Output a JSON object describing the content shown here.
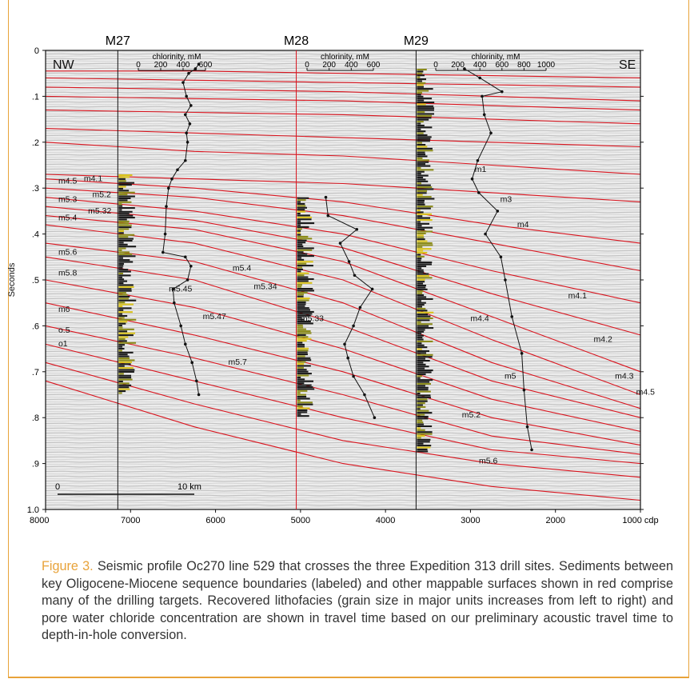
{
  "figure": {
    "caption_lead": "Figure 3.",
    "caption_text": " Seismic profile Oc270 line 529 that crosses the three Expedition 313 drill sites. Sediments between key Oligocene-Miocene sequence boundaries (labeled) and other mappable surfaces shown in red comprise many of the drilling targets. Recovered lithofacies (grain size in major units increases from left to right) and pore water chloride concentration are shown in travel time based on our preliminary acoustic travel time to depth-in-hole conversion.",
    "accent_color": "#e8a33a",
    "horizon_color": "#d9141e"
  },
  "chart_data": {
    "type": "line",
    "xlabel": "",
    "x_unit": "cdp",
    "ylabel": "Seconds",
    "xlim": [
      8000,
      1000
    ],
    "ylim": [
      0,
      1.0
    ],
    "x_ticks": [
      "8000",
      "7000",
      "6000",
      "5000",
      "4000",
      "3000",
      "2000",
      "1000 cdp"
    ],
    "y_ticks": [
      "0",
      ".1",
      ".2",
      ".3",
      ".4",
      ".5",
      ".6",
      ".7",
      ".8",
      ".9",
      "1.0"
    ],
    "directions": [
      "NW",
      "SE"
    ],
    "scale_bar": {
      "start_label": "0",
      "end_label": "10 km"
    },
    "sites": [
      {
        "name": "M27",
        "cdp": 7150,
        "chlor_label": "chlorinity, mM",
        "chlor_ticks": [
          "0",
          "200",
          "400",
          "600"
        ],
        "chlor_max": 600,
        "chlorinity": [
          [
            0.03,
            540
          ],
          [
            0.04,
            510
          ],
          [
            0.05,
            450
          ],
          [
            0.07,
            400
          ],
          [
            0.1,
            430
          ],
          [
            0.12,
            470
          ],
          [
            0.14,
            420
          ],
          [
            0.16,
            460
          ],
          [
            0.18,
            430
          ],
          [
            0.2,
            440
          ],
          [
            0.24,
            420
          ],
          [
            0.26,
            350
          ],
          [
            0.28,
            300
          ],
          [
            0.3,
            270
          ],
          [
            0.34,
            250
          ],
          [
            0.4,
            240
          ],
          [
            0.44,
            220
          ],
          [
            0.45,
            420
          ],
          [
            0.47,
            470
          ],
          [
            0.5,
            440
          ],
          [
            0.52,
            310
          ],
          [
            0.55,
            320
          ],
          [
            0.6,
            380
          ],
          [
            0.64,
            420
          ],
          [
            0.68,
            480
          ],
          [
            0.72,
            520
          ],
          [
            0.75,
            540
          ]
        ]
      },
      {
        "name": "M28",
        "cdp": 5050,
        "chlor_label": "chlorinity, mM",
        "chlor_ticks": [
          "0",
          "200",
          "400",
          "600"
        ],
        "chlor_max": 600,
        "chlorinity": [
          [
            0.32,
            170
          ],
          [
            0.36,
            190
          ],
          [
            0.39,
            450
          ],
          [
            0.42,
            300
          ],
          [
            0.46,
            380
          ],
          [
            0.49,
            430
          ],
          [
            0.52,
            590
          ],
          [
            0.56,
            480
          ],
          [
            0.6,
            420
          ],
          [
            0.64,
            340
          ],
          [
            0.67,
            370
          ],
          [
            0.71,
            420
          ],
          [
            0.75,
            520
          ],
          [
            0.8,
            610
          ]
        ]
      },
      {
        "name": "M29",
        "cdp": 3640,
        "chlor_label": "chlorinity, mM",
        "chlor_ticks": [
          "0",
          "200",
          "400",
          "600",
          "800",
          "1000"
        ],
        "chlor_max": 1000,
        "chlorinity": [
          [
            0.04,
            260
          ],
          [
            0.06,
            400
          ],
          [
            0.09,
            600
          ],
          [
            0.1,
            420
          ],
          [
            0.14,
            440
          ],
          [
            0.18,
            500
          ],
          [
            0.24,
            380
          ],
          [
            0.28,
            330
          ],
          [
            0.31,
            390
          ],
          [
            0.35,
            560
          ],
          [
            0.4,
            450
          ],
          [
            0.45,
            590
          ],
          [
            0.5,
            630
          ],
          [
            0.58,
            690
          ],
          [
            0.66,
            780
          ],
          [
            0.74,
            800
          ],
          [
            0.82,
            830
          ],
          [
            0.87,
            870
          ]
        ]
      }
    ],
    "horizon_labels": [
      {
        "text": "m4.5",
        "cdp": 7850,
        "t": 0.29
      },
      {
        "text": "m4.1",
        "cdp": 7550,
        "t": 0.285
      },
      {
        "text": "m5.2",
        "cdp": 7450,
        "t": 0.32
      },
      {
        "text": "m5.3",
        "cdp": 7850,
        "t": 0.33
      },
      {
        "text": "m5.32",
        "cdp": 7500,
        "t": 0.355
      },
      {
        "text": "m5.4",
        "cdp": 7850,
        "t": 0.37
      },
      {
        "text": "m5.6",
        "cdp": 7850,
        "t": 0.445
      },
      {
        "text": "m5.8",
        "cdp": 7850,
        "t": 0.49
      },
      {
        "text": "m6",
        "cdp": 7850,
        "t": 0.57
      },
      {
        "text": "o.5",
        "cdp": 7850,
        "t": 0.615
      },
      {
        "text": "o1",
        "cdp": 7850,
        "t": 0.645
      },
      {
        "text": "m5.4",
        "cdp": 5800,
        "t": 0.48
      },
      {
        "text": "m5.34",
        "cdp": 5550,
        "t": 0.52
      },
      {
        "text": "m5.45",
        "cdp": 6550,
        "t": 0.525
      },
      {
        "text": "m5.47",
        "cdp": 6150,
        "t": 0.585
      },
      {
        "text": "m5.33",
        "cdp": 5000,
        "t": 0.59
      },
      {
        "text": "m5.7",
        "cdp": 5850,
        "t": 0.685
      },
      {
        "text": "m1",
        "cdp": 2950,
        "t": 0.265
      },
      {
        "text": "m3",
        "cdp": 2650,
        "t": 0.33
      },
      {
        "text": "m4",
        "cdp": 2450,
        "t": 0.385
      },
      {
        "text": "m4.1",
        "cdp": 1850,
        "t": 0.54
      },
      {
        "text": "m4.4",
        "cdp": 3000,
        "t": 0.59
      },
      {
        "text": "m4.2",
        "cdp": 1550,
        "t": 0.635
      },
      {
        "text": "m4.3",
        "cdp": 1300,
        "t": 0.715
      },
      {
        "text": "m5",
        "cdp": 2600,
        "t": 0.715
      },
      {
        "text": "m4.5",
        "cdp": 1050,
        "t": 0.75
      },
      {
        "text": "m5.2",
        "cdp": 3100,
        "t": 0.8
      },
      {
        "text": "m5.6",
        "cdp": 2900,
        "t": 0.9
      }
    ]
  }
}
